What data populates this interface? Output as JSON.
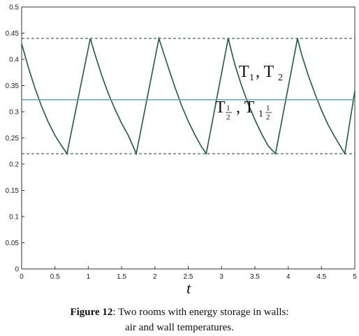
{
  "chart_data": {
    "type": "line",
    "xlabel": "t",
    "ylabel": "",
    "xlim": [
      0,
      5
    ],
    "ylim": [
      0,
      0.5
    ],
    "xticks": [
      "0",
      "0.5",
      "1",
      "1.5",
      "2",
      "2.5",
      "3",
      "3.5",
      "4",
      "4.5",
      "5"
    ],
    "yticks": [
      "0",
      "0.05",
      "0.1",
      "0.15",
      "0.2",
      "0.25",
      "0.3",
      "0.35",
      "0.4",
      "0.45",
      "0.5"
    ],
    "series": [
      {
        "name": "T1, T2",
        "style": "solid",
        "color": "#1a5e3a",
        "x": [
          0,
          0.1,
          0.2,
          0.3,
          0.4,
          0.5,
          0.6,
          0.68,
          1.03,
          1.1,
          1.2,
          1.3,
          1.4,
          1.5,
          1.6,
          1.72,
          2.06,
          2.2,
          2.3,
          2.4,
          2.5,
          2.6,
          2.7,
          2.77,
          3.1,
          3.2,
          3.3,
          3.4,
          3.5,
          3.6,
          3.7,
          3.81,
          4.14,
          4.2,
          4.3,
          4.4,
          4.5,
          4.6,
          4.7,
          4.85,
          5.0
        ],
        "y": [
          0.43,
          0.385,
          0.345,
          0.31,
          0.28,
          0.255,
          0.235,
          0.22,
          0.44,
          0.41,
          0.37,
          0.335,
          0.305,
          0.278,
          0.255,
          0.22,
          0.44,
          0.385,
          0.347,
          0.312,
          0.282,
          0.256,
          0.233,
          0.22,
          0.44,
          0.39,
          0.35,
          0.315,
          0.285,
          0.258,
          0.235,
          0.22,
          0.44,
          0.41,
          0.37,
          0.335,
          0.303,
          0.275,
          0.252,
          0.22,
          0.34
        ]
      },
      {
        "name": "T1/2, T1 1/2",
        "style": "solid",
        "color": "#5aa8b8",
        "x": [
          0,
          5
        ],
        "y": [
          0.323,
          0.323
        ]
      },
      {
        "name": "upper bound",
        "style": "dashed",
        "color": "#1a3e4a",
        "x": [
          0,
          5
        ],
        "y": [
          0.44,
          0.44
        ]
      },
      {
        "name": "lower bound",
        "style": "dashed",
        "color": "#1a3e4a",
        "x": [
          0,
          5
        ],
        "y": [
          0.22,
          0.22
        ]
      }
    ],
    "annotations": [
      {
        "text": "T1, T2"
      },
      {
        "text": "T1/2, T1 1/2"
      }
    ]
  },
  "caption": {
    "label": "Figure 12",
    "line1": ": Two rooms with energy storage in walls:",
    "line2": "air and wall temperatures."
  }
}
